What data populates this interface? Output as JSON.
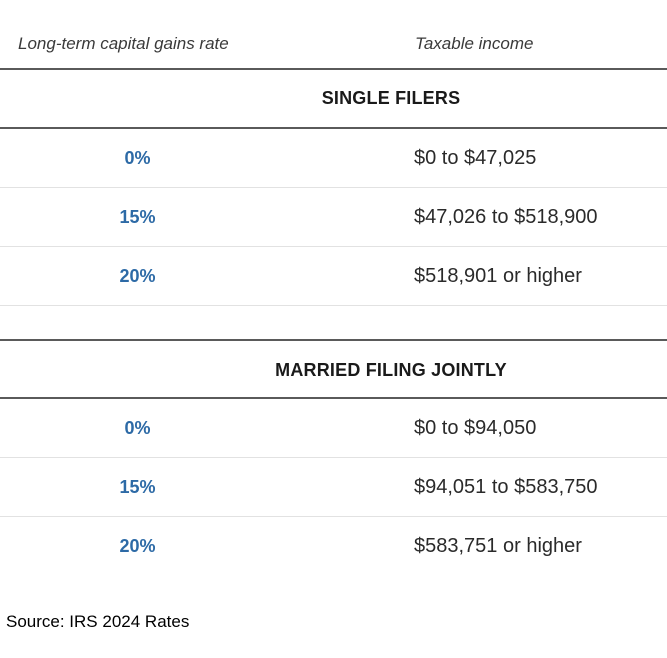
{
  "header": {
    "rate_label": "Long-term capital gains rate",
    "income_label": "Taxable income"
  },
  "sections": [
    {
      "title": "SINGLE FILERS",
      "rows": [
        {
          "rate": "0%",
          "income": "$0 to $47,025"
        },
        {
          "rate": "15%",
          "income": "$47,026 to $518,900"
        },
        {
          "rate": "20%",
          "income": "$518,901 or higher"
        }
      ]
    },
    {
      "title": "MARRIED FILING JOINTLY",
      "rows": [
        {
          "rate": "0%",
          "income": "$0 to $94,050"
        },
        {
          "rate": "15%",
          "income": "$94,051 to $583,750"
        },
        {
          "rate": "20%",
          "income": "$583,751 or higher"
        }
      ]
    }
  ],
  "source": "Source: IRS 2024 Rates",
  "colors": {
    "rate_text": "#2d6aa6",
    "rule": "#5a5a5a"
  }
}
